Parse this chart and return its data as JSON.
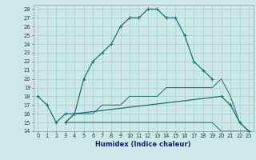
{
  "xlabel": "Humidex (Indice chaleur)",
  "bg_color": "#cce8e8",
  "grid_color": "#aacece",
  "line_color": "#1a7070",
  "xlim": [
    -0.5,
    23.5
  ],
  "ylim": [
    14,
    28.5
  ],
  "yticks": [
    14,
    15,
    16,
    17,
    18,
    19,
    20,
    21,
    22,
    23,
    24,
    25,
    26,
    27,
    28
  ],
  "xticks": [
    0,
    1,
    2,
    3,
    4,
    5,
    6,
    7,
    8,
    9,
    10,
    11,
    12,
    13,
    14,
    15,
    16,
    17,
    18,
    19,
    20,
    21,
    22,
    23
  ],
  "s1x": [
    0,
    1,
    2,
    3,
    4,
    5,
    6,
    7,
    8,
    9,
    10,
    11,
    12,
    13,
    14,
    15,
    16,
    17,
    18,
    19
  ],
  "s1y": [
    18,
    17,
    15,
    16,
    16,
    20,
    22,
    23,
    24,
    26,
    27,
    27,
    28,
    28,
    27,
    27,
    25,
    22,
    21,
    20
  ],
  "s2x": [
    3,
    4,
    20,
    21,
    22,
    23
  ],
  "s2y": [
    15,
    16,
    18,
    17,
    15,
    14
  ],
  "s3x": [
    3,
    4,
    5,
    6,
    7,
    8,
    9,
    10,
    11,
    12,
    13,
    14,
    15,
    16,
    17,
    18,
    19,
    20,
    21,
    22,
    23
  ],
  "s3y": [
    15,
    15,
    15,
    15,
    15,
    15,
    15,
    15,
    15,
    15,
    15,
    15,
    15,
    15,
    15,
    15,
    15,
    14,
    14,
    14,
    14
  ],
  "s4x": [
    3,
    4,
    5,
    6,
    7,
    8,
    9,
    10,
    11,
    12,
    13,
    14,
    15,
    16,
    17,
    18,
    19,
    20,
    21,
    22,
    23
  ],
  "s4y": [
    15,
    16,
    16,
    16,
    17,
    17,
    17,
    18,
    18,
    18,
    18,
    19,
    19,
    19,
    19,
    19,
    19,
    20,
    18,
    15,
    14
  ]
}
